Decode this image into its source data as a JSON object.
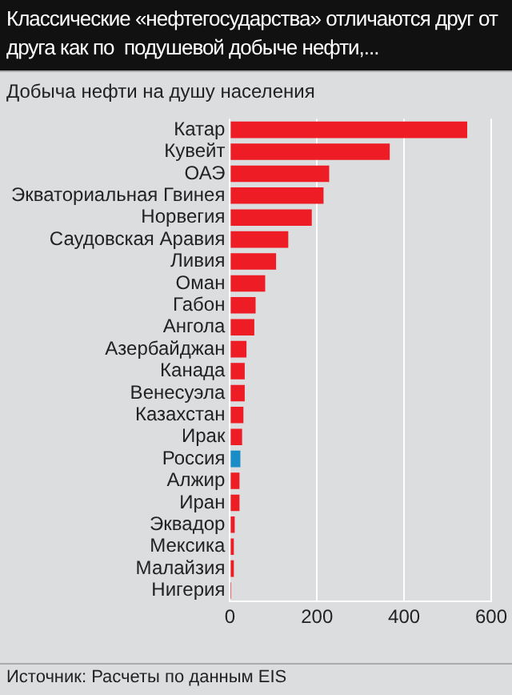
{
  "chart_data": {
    "type": "bar",
    "orientation": "horizontal",
    "title": "Классические «нефтегосударства» отличаются друг от друга как по  подушевой добыче нефти,...",
    "subtitle": "Добыча нефти на душу населения",
    "categories": [
      "Катар",
      "Кувейт",
      "ОАЭ",
      "Экваториальная Гвинея",
      "Норвегия",
      "Саудовская Аравия",
      "Ливия",
      "Оман",
      "Габон",
      "Ангола",
      "Азербайджан",
      "Канада",
      "Венесуэла",
      "Казахстан",
      "Ирак",
      "Россия",
      "Алжир",
      "Иран",
      "Эквадор",
      "Мексика",
      "Малайзия",
      "Нигерия"
    ],
    "values": [
      545,
      367,
      228,
      215,
      188,
      134,
      106,
      81,
      59,
      56,
      38,
      34,
      34,
      31,
      28,
      24,
      22,
      22,
      11,
      9,
      9,
      3
    ],
    "colors": [
      "#ee1c25",
      "#ee1c25",
      "#ee1c25",
      "#ee1c25",
      "#ee1c25",
      "#ee1c25",
      "#ee1c25",
      "#ee1c25",
      "#ee1c25",
      "#ee1c25",
      "#ee1c25",
      "#ee1c25",
      "#ee1c25",
      "#ee1c25",
      "#ee1c25",
      "#1a8dc8",
      "#ee1c25",
      "#ee1c25",
      "#ee1c25",
      "#ee1c25",
      "#ee1c25",
      "#ee1c25"
    ],
    "xlim": [
      0,
      600
    ],
    "xticks": [
      0,
      200,
      400,
      600
    ],
    "grid": "x",
    "legend": false,
    "annotations": [
      "Источник: Расчеты по данным EIS"
    ]
  }
}
